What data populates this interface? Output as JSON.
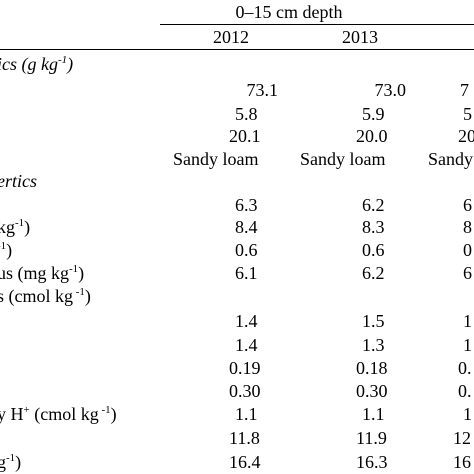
{
  "table": {
    "depth_header": "0–15 cm depth",
    "years": [
      "2012",
      "2013",
      "20"
    ],
    "section_physical": "ics (g kg",
    "section_physical_sup": "-1",
    "section_physical_end": ")",
    "section_chemical": "ertics",
    "rows": [
      {
        "label": "",
        "v1": "73.1",
        "v2": "73.0",
        "v3": "7"
      },
      {
        "label": "",
        "v1": "5.8",
        "v2": "5.9",
        "v3": "5"
      },
      {
        "label": "",
        "v1": "20.1",
        "v2": "20.0",
        "v3": "20"
      },
      {
        "label": "",
        "v1": "Sandy loam",
        "v2": "Sandy loam",
        "v3": "Sandy"
      },
      {
        "label": "",
        "v1": "6.3",
        "v2": "6.2",
        "v3": "6"
      },
      {
        "label": "kg",
        "label_sup": "-1",
        "label_end": ")",
        "v1": "8.4",
        "v2": "8.3",
        "v3": "8"
      },
      {
        "label": "",
        "label_sup": "-1",
        "label_end": ")",
        "v1": "0.6",
        "v2": "0.6",
        "v3": "0"
      },
      {
        "label": "us (mg kg",
        "label_sup": "-1",
        "label_end": ")",
        "v1": "6.1",
        "v2": "6.2",
        "v3": "6"
      },
      {
        "label": "s (cmol kg",
        "label_sup": " -1",
        "label_end": ")"
      },
      {
        "label": "",
        "v1": "1.4",
        "v2": "1.5",
        "v3": "1"
      },
      {
        "label": "",
        "v1": "1.4",
        "v2": "1.3",
        "v3": "1"
      },
      {
        "label": "",
        "v1": "0.19",
        "v2": "0.18",
        "v3": "0."
      },
      {
        "label": "",
        "v1": "0.30",
        "v2": "0.30",
        "v3": "0."
      },
      {
        "label": "y H",
        "label_sup": "+",
        "label_mid": " (cmol kg",
        "label_sup2": " -1",
        "label_end": ")",
        "v1": "1.1",
        "v2": "1.1",
        "v3": "1"
      },
      {
        "label": "",
        "v1": "11.8",
        "v2": "11.9",
        "v3": "12"
      },
      {
        "label": "g",
        "label_sup": "-1",
        "label_end": ")",
        "v1": "16.4",
        "v2": "16.3",
        "v3": "16"
      }
    ]
  }
}
